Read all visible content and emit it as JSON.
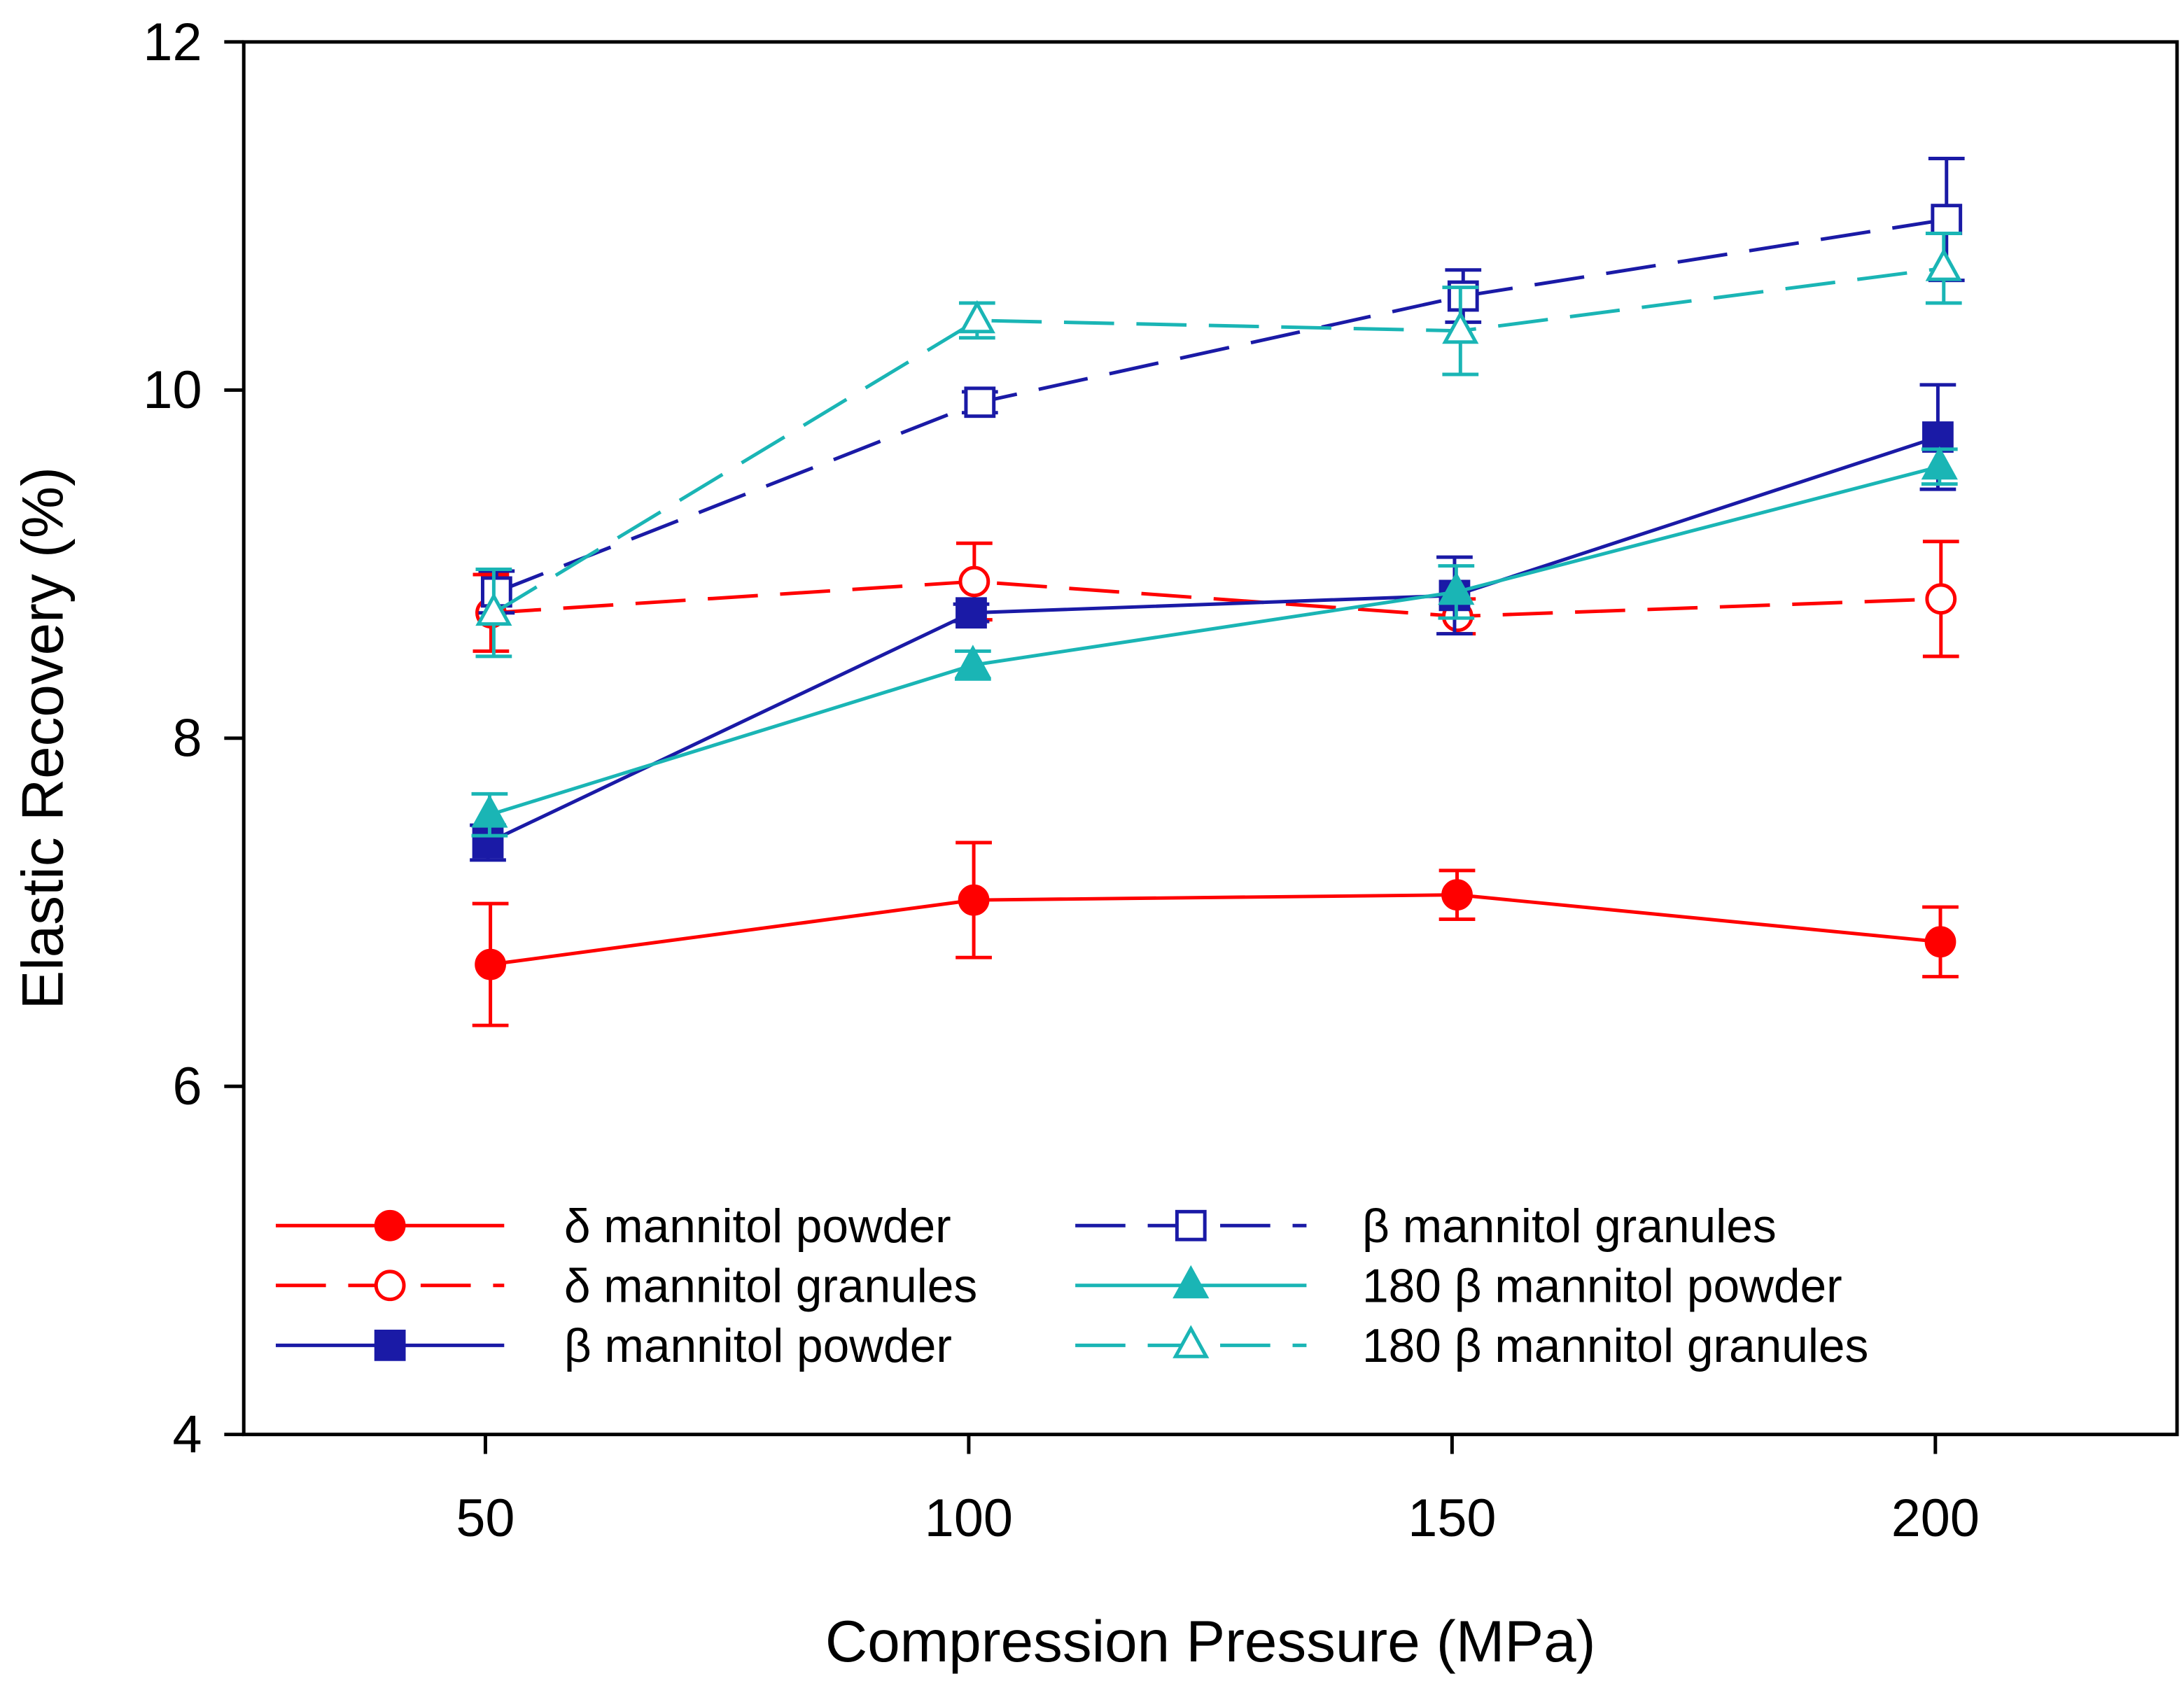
{
  "chart_data": {
    "type": "line",
    "title": "",
    "xlabel": "Compression Pressure (MPa)",
    "ylabel": "Elastic Recovery (%)",
    "xlim": [
      25,
      225
    ],
    "ylim": [
      4,
      12
    ],
    "xticks": [
      50,
      100,
      150,
      200
    ],
    "yticks": [
      4,
      6,
      8,
      10,
      12
    ],
    "grid": false,
    "legend_position": "bottom-inside",
    "x": [
      50,
      100,
      150,
      200
    ],
    "series": [
      {
        "name": "δ mannitol powder",
        "color": "#ff0000",
        "dash": "solid",
        "marker": "circle",
        "filled": true,
        "values": [
          6.7,
          7.07,
          7.1,
          6.83
        ],
        "errors": [
          0.35,
          0.33,
          0.14,
          0.2
        ]
      },
      {
        "name": "δ mannitol granules",
        "color": "#ff0000",
        "dash": "dashed",
        "marker": "circle",
        "filled": false,
        "values": [
          8.72,
          8.9,
          8.7,
          8.8
        ],
        "errors": [
          0.22,
          0.22,
          0.1,
          0.33
        ]
      },
      {
        "name": "β mannitol powder",
        "color": "#1a1aa6",
        "dash": "solid",
        "marker": "square",
        "filled": true,
        "values": [
          7.4,
          8.72,
          8.82,
          9.73
        ],
        "errors": [
          0.1,
          0.05,
          0.22,
          0.3
        ]
      },
      {
        "name": "β mannitol granules",
        "color": "#1a1aa6",
        "dash": "dashed",
        "marker": "square",
        "filled": false,
        "values": [
          8.84,
          9.93,
          10.54,
          10.98
        ],
        "errors": [
          0.12,
          0.06,
          0.15,
          0.35
        ]
      },
      {
        "name": "180 β mannitol powder",
        "color": "#1ab5b5",
        "dash": "solid",
        "marker": "triangle",
        "filled": true,
        "values": [
          7.56,
          8.42,
          8.84,
          9.56
        ],
        "errors": [
          0.12,
          0.08,
          0.15,
          0.1
        ]
      },
      {
        "name": "180 β mannitol granules",
        "color": "#1ab5b5",
        "dash": "dashed",
        "marker": "triangle",
        "filled": false,
        "values": [
          8.72,
          10.4,
          10.34,
          10.7
        ],
        "errors": [
          0.25,
          0.1,
          0.25,
          0.2
        ]
      }
    ]
  }
}
